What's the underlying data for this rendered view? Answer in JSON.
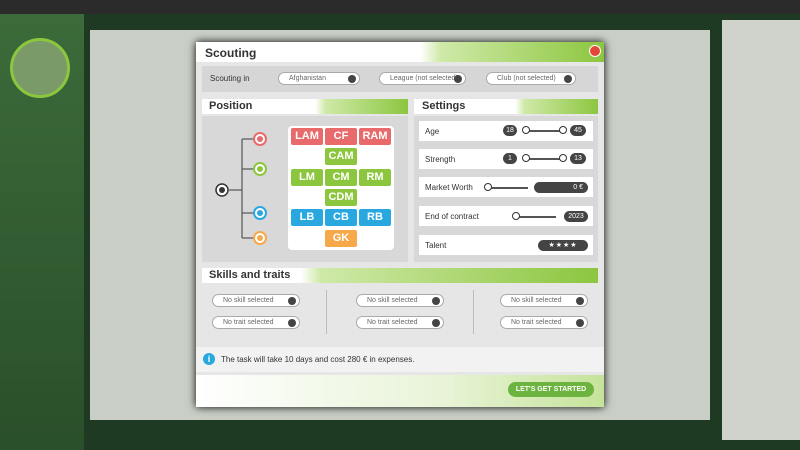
{
  "modal": {
    "title": "Scouting",
    "scouting_in": {
      "label": "Scouting in",
      "country": "Afghanistan",
      "league": "League (not selected)",
      "club": "Club (not selected)"
    },
    "position": {
      "title": "Position",
      "grid": [
        "LAM",
        "CF",
        "RAM",
        "CAM",
        "LM",
        "CM",
        "RM",
        "CDM",
        "LB",
        "CB",
        "RB",
        "GK"
      ]
    },
    "settings": {
      "title": "Settings",
      "age": {
        "label": "Age",
        "min": "18",
        "max": "45"
      },
      "strength": {
        "label": "Strength",
        "min": "1",
        "max": "13"
      },
      "market_worth": {
        "label": "Market Worth",
        "value": "0 €"
      },
      "end_of_contract": {
        "label": "End of contract",
        "value": "2023"
      },
      "talent": {
        "label": "Talent",
        "value": "★★★★"
      }
    },
    "skills": {
      "title": "Skills and traits",
      "skill": "No skill selected",
      "trait": "No trait selected"
    },
    "info": "The task will take 10 days and cost 280 € in expenses.",
    "button": "LET'S GET STARTED"
  }
}
